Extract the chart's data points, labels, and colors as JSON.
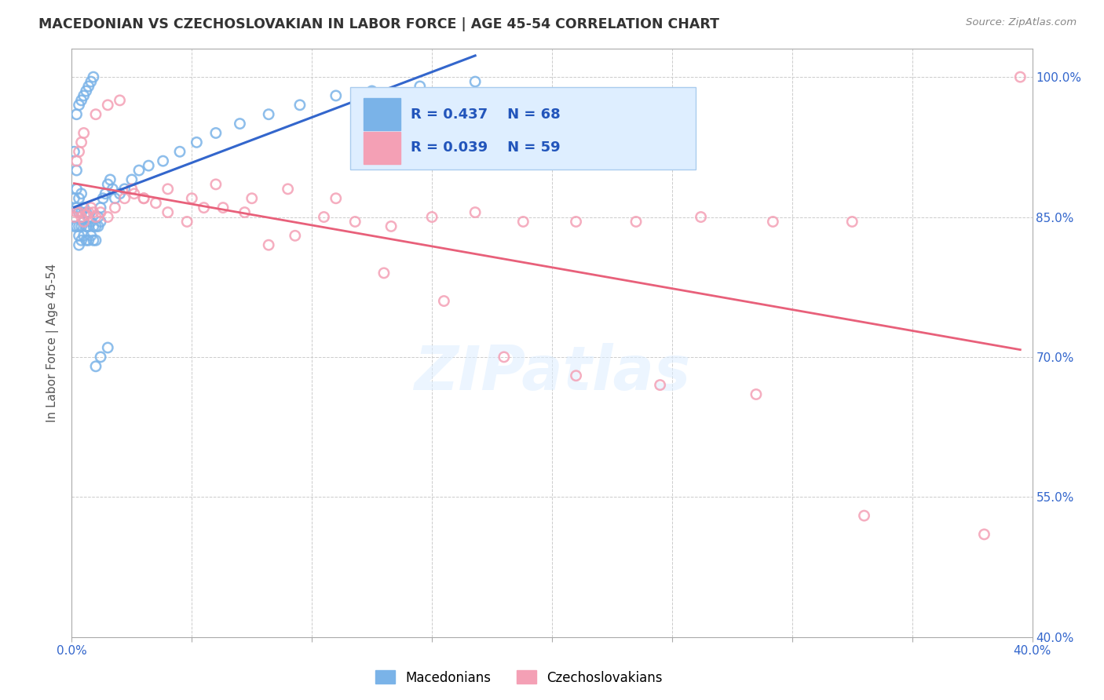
{
  "title": "MACEDONIAN VS CZECHOSLOVAKIAN IN LABOR FORCE | AGE 45-54 CORRELATION CHART",
  "source": "Source: ZipAtlas.com",
  "ylabel": "In Labor Force | Age 45-54",
  "x_min": 0.0,
  "x_max": 0.4,
  "y_min": 0.4,
  "y_max": 1.03,
  "macedonian_color": "#7ab3e8",
  "macedonian_edge": "#5a9fd4",
  "czechoslovakian_color": "#f4a0b5",
  "czechoslovakian_edge": "#e07090",
  "trend_macedonian_color": "#3366cc",
  "trend_czechoslovakian_color": "#e8607a",
  "R_macedonian": 0.437,
  "N_macedonian": 68,
  "R_czechoslovakian": 0.039,
  "N_czechoslovakian": 59,
  "macedonians_x": [
    0.001,
    0.001,
    0.001,
    0.002,
    0.002,
    0.002,
    0.002,
    0.003,
    0.003,
    0.003,
    0.003,
    0.003,
    0.004,
    0.004,
    0.004,
    0.004,
    0.005,
    0.005,
    0.005,
    0.006,
    0.006,
    0.006,
    0.007,
    0.007,
    0.007,
    0.008,
    0.008,
    0.009,
    0.009,
    0.01,
    0.01,
    0.011,
    0.011,
    0.012,
    0.012,
    0.013,
    0.014,
    0.015,
    0.016,
    0.017,
    0.018,
    0.02,
    0.022,
    0.025,
    0.028,
    0.032,
    0.038,
    0.045,
    0.052,
    0.06,
    0.07,
    0.082,
    0.095,
    0.11,
    0.125,
    0.145,
    0.168,
    0.002,
    0.003,
    0.004,
    0.005,
    0.006,
    0.007,
    0.008,
    0.009,
    0.01,
    0.012,
    0.015
  ],
  "macedonians_y": [
    0.87,
    0.92,
    0.84,
    0.88,
    0.86,
    0.9,
    0.84,
    0.87,
    0.855,
    0.84,
    0.83,
    0.82,
    0.875,
    0.855,
    0.84,
    0.825,
    0.86,
    0.845,
    0.83,
    0.855,
    0.84,
    0.825,
    0.85,
    0.84,
    0.825,
    0.845,
    0.83,
    0.84,
    0.825,
    0.84,
    0.825,
    0.84,
    0.85,
    0.845,
    0.86,
    0.87,
    0.875,
    0.885,
    0.89,
    0.88,
    0.87,
    0.875,
    0.88,
    0.89,
    0.9,
    0.905,
    0.91,
    0.92,
    0.93,
    0.94,
    0.95,
    0.96,
    0.97,
    0.98,
    0.985,
    0.99,
    0.995,
    0.96,
    0.97,
    0.975,
    0.98,
    0.985,
    0.99,
    0.995,
    1.0,
    0.69,
    0.7,
    0.71
  ],
  "czechoslovakians_x": [
    0.001,
    0.002,
    0.003,
    0.004,
    0.005,
    0.006,
    0.007,
    0.008,
    0.009,
    0.01,
    0.012,
    0.015,
    0.018,
    0.022,
    0.026,
    0.03,
    0.035,
    0.04,
    0.048,
    0.055,
    0.063,
    0.072,
    0.082,
    0.093,
    0.105,
    0.118,
    0.133,
    0.15,
    0.168,
    0.188,
    0.21,
    0.235,
    0.262,
    0.292,
    0.325,
    0.002,
    0.003,
    0.004,
    0.005,
    0.01,
    0.015,
    0.02,
    0.025,
    0.03,
    0.04,
    0.05,
    0.06,
    0.075,
    0.09,
    0.11,
    0.13,
    0.155,
    0.18,
    0.21,
    0.245,
    0.285,
    0.33,
    0.38,
    0.395
  ],
  "czechoslovakians_y": [
    0.85,
    0.855,
    0.855,
    0.85,
    0.845,
    0.852,
    0.855,
    0.86,
    0.855,
    0.85,
    0.855,
    0.85,
    0.86,
    0.87,
    0.875,
    0.87,
    0.865,
    0.855,
    0.845,
    0.86,
    0.86,
    0.855,
    0.82,
    0.83,
    0.85,
    0.845,
    0.84,
    0.85,
    0.855,
    0.845,
    0.845,
    0.845,
    0.85,
    0.845,
    0.845,
    0.91,
    0.92,
    0.93,
    0.94,
    0.96,
    0.97,
    0.975,
    0.88,
    0.87,
    0.88,
    0.87,
    0.885,
    0.87,
    0.88,
    0.87,
    0.79,
    0.76,
    0.7,
    0.68,
    0.67,
    0.66,
    0.53,
    0.51,
    1.0
  ],
  "watermark_text": "ZIPatlas",
  "background_color": "#ffffff",
  "grid_color": "#cccccc",
  "grid_style": "--"
}
